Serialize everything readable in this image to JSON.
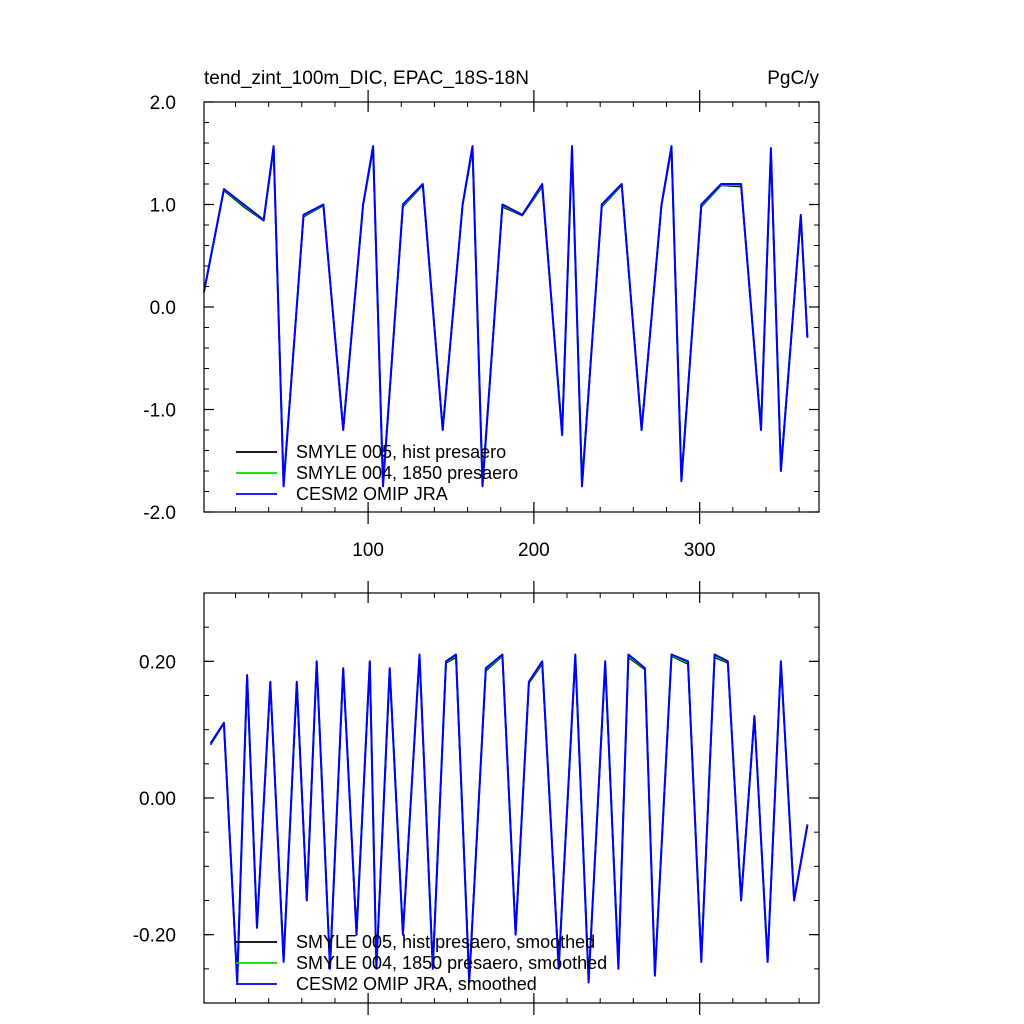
{
  "chart_data": [
    {
      "type": "line",
      "title": "tend_zint_100m_DIC, EPAC_18S-18N",
      "units": "PgC/y",
      "xlabel": "",
      "ylabel": "",
      "xlim": [
        1,
        372
      ],
      "ylim": [
        -2.0,
        2.0
      ],
      "xticks": [
        100,
        200,
        300
      ],
      "xtick_labels": [
        "100",
        "200",
        "300"
      ],
      "yticks": [
        -2.0,
        -1.0,
        0.0,
        1.0,
        2.0
      ],
      "ytick_labels": [
        "-2.0",
        "-1.0",
        "0.0",
        "1.0",
        "2.0"
      ],
      "grid": false,
      "legend_position": "bottom-left",
      "series": [
        {
          "name": "SMYLE 005, hist presaero",
          "color": "#000000"
        },
        {
          "name": "SMYLE 004, 1850 presaero",
          "color": "#00dd00"
        },
        {
          "name": "CESM2 OMIP JRA",
          "color": "#0000ff"
        }
      ],
      "x": [
        1,
        13,
        25,
        37,
        43,
        49,
        61,
        73,
        85,
        97,
        103,
        109,
        121,
        133,
        145,
        157,
        163,
        169,
        181,
        193,
        205,
        217,
        223,
        229,
        241,
        253,
        265,
        277,
        283,
        289,
        301,
        313,
        325,
        337,
        343,
        349,
        361,
        365
      ],
      "values": [
        0.15,
        1.15,
        1.0,
        0.85,
        1.57,
        -1.75,
        0.9,
        1.0,
        -1.2,
        1.0,
        1.57,
        -1.75,
        1.0,
        1.2,
        -1.2,
        1.0,
        1.57,
        -1.75,
        1.0,
        0.9,
        1.2,
        -1.25,
        1.57,
        -1.75,
        1.0,
        1.2,
        -1.2,
        1.0,
        1.57,
        -1.7,
        1.0,
        1.2,
        1.2,
        -1.2,
        1.55,
        -1.6,
        0.9,
        -0.3
      ]
    },
    {
      "type": "line",
      "title": "",
      "xlabel": "",
      "ylabel": "",
      "xlim": [
        1,
        372
      ],
      "ylim": [
        -0.3,
        0.3
      ],
      "xticks": [
        100,
        200,
        300
      ],
      "yticks": [
        -0.2,
        0.0,
        0.2
      ],
      "ytick_labels": [
        "-0.20",
        "0.00",
        "0.20"
      ],
      "grid": false,
      "legend_position": "bottom-left",
      "series": [
        {
          "name": "SMYLE 005, hist presaero, smoothed",
          "color": "#000000"
        },
        {
          "name": "SMYLE 004, 1850 presaero, smoothed",
          "color": "#00dd00"
        },
        {
          "name": "CESM2 OMIP JRA, smoothed",
          "color": "#0000ff"
        }
      ],
      "x": [
        5,
        13,
        21,
        27,
        33,
        41,
        49,
        57,
        63,
        69,
        77,
        85,
        93,
        101,
        105,
        113,
        121,
        131,
        139,
        147,
        153,
        161,
        171,
        181,
        189,
        197,
        205,
        215,
        225,
        233,
        243,
        251,
        257,
        267,
        273,
        283,
        293,
        301,
        309,
        317,
        325,
        333,
        341,
        349,
        357,
        365
      ],
      "values": [
        0.08,
        0.11,
        -0.27,
        0.18,
        -0.19,
        0.17,
        -0.24,
        0.17,
        -0.15,
        0.2,
        -0.25,
        0.19,
        -0.2,
        0.2,
        -0.25,
        0.19,
        -0.2,
        0.21,
        -0.25,
        0.2,
        0.21,
        -0.27,
        0.19,
        0.21,
        -0.2,
        0.17,
        0.2,
        -0.25,
        0.21,
        -0.27,
        0.2,
        -0.25,
        0.21,
        0.19,
        -0.26,
        0.21,
        0.2,
        -0.24,
        0.21,
        0.2,
        -0.15,
        0.12,
        -0.24,
        0.2,
        -0.15,
        -0.04
      ]
    }
  ]
}
